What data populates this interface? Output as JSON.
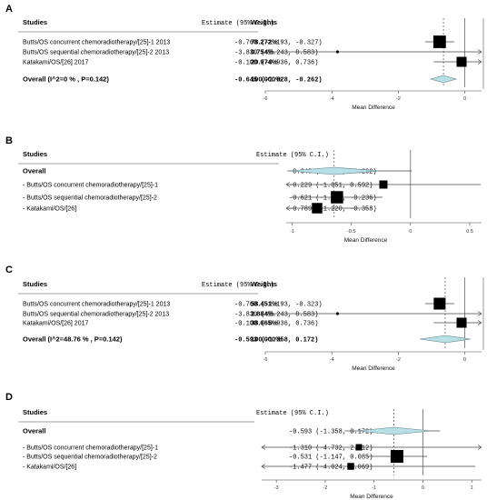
{
  "chart_data": [
    {
      "type": "forest",
      "panel_label": "A",
      "header": {
        "studies": "Studies",
        "estimate": "Estimate (95% C.I.)",
        "weights": "Weights"
      },
      "xlabel": "Mean Difference",
      "xlim": [
        -6,
        0.5
      ],
      "xticks": [
        -6,
        -4,
        -2,
        0
      ],
      "reference_line": -0.645,
      "rows": [
        {
          "label": "Butts/OS concurrent chemoradiotherapy/[25]-1 2013",
          "estimate_text": "-0.760 (-1.193, -0.327)",
          "weight": "78.272%",
          "est": -0.76,
          "lo": -1.193,
          "hi": -0.327,
          "marker": "square",
          "size": 0.78
        },
        {
          "label": "Butts/OS sequential chemoradiotherapy/[25]-2 2013",
          "estimate_text": "-3.830 (-8.243, 0.583)",
          "weight": "0.754%",
          "est": -3.83,
          "lo": -8.243,
          "hi": 0.583,
          "marker": "square",
          "size": 0.05
        },
        {
          "label": "Katakami/OS/[26] 2017",
          "estimate_text": "-0.100 (-0.936, 0.736)",
          "weight": "20.974%",
          "est": -0.1,
          "lo": -0.936,
          "hi": 0.736,
          "marker": "square",
          "size": 0.5
        }
      ],
      "overall": {
        "label": "Overall (I^2=0 % , P=0.142)",
        "estimate_text": "-0.645 (-1.028, -0.262)",
        "weight": "100.000%",
        "est": -0.645,
        "lo": -1.028,
        "hi": -0.262
      }
    },
    {
      "type": "forest",
      "panel_label": "B",
      "header": {
        "studies": "Studies",
        "estimate": "Estimate (95% C.I.)"
      },
      "xlabel": "Mean Difference",
      "xlim": [
        -1.05,
        0.6
      ],
      "xticks": [
        -1,
        -0.5,
        0,
        0.5
      ],
      "reference_line": -0.645,
      "overall": {
        "label": "Overall",
        "estimate_text": "-0.645 (-1.028, -0.262)",
        "est": -0.645,
        "lo": -1.028,
        "hi": -0.262
      },
      "rows": [
        {
          "label": "- Butts/OS concurrent chemoradiotherapy/[25]-1",
          "estimate_text": "-0.229 (-1.051, 0.592)",
          "est": -0.229,
          "lo": -1.051,
          "hi": 0.592,
          "marker": "square",
          "size": 0.3
        },
        {
          "label": "- Butts/OS sequential chemoradiotherapy/[25]-2",
          "estimate_text": "-0.621 (-1.005, -0.236)",
          "est": -0.621,
          "lo": -1.005,
          "hi": -0.236,
          "marker": "square",
          "size": 0.75
        },
        {
          "label": "- Katakami/OS/[26]",
          "estimate_text": "-0.789 (-1.220, -0.358)",
          "est": -0.789,
          "lo": -1.22,
          "hi": -0.358,
          "marker": "square",
          "size": 0.55
        }
      ]
    },
    {
      "type": "forest",
      "panel_label": "C",
      "header": {
        "studies": "Studies",
        "estimate": "Estimate (95% C.I.)",
        "weights": "Weights"
      },
      "xlabel": "Mean Difference",
      "xlim": [
        -6,
        0.5
      ],
      "xticks": [
        -6,
        -4,
        -2,
        0
      ],
      "reference_line": -0.593,
      "rows": [
        {
          "label": "Butts/OS concurrent chemoradiotherapy/[25]-1 2013",
          "estimate_text": "-0.760 (-1.193, -0.323)",
          "weight": "58.451%",
          "est": -0.76,
          "lo": -1.193,
          "hi": -0.323,
          "marker": "square",
          "size": 0.7
        },
        {
          "label": "Butts/OS sequential chemoradiotherapy/[25]-2 2013",
          "estimate_text": "-3.830 (-8.243, 0.583)",
          "weight": "2.884%",
          "est": -3.83,
          "lo": -8.243,
          "hi": 0.583,
          "marker": "square",
          "size": 0.05
        },
        {
          "label": "Katakami/OS/[26] 2017",
          "estimate_text": "-0.100 (-0.936, 0.736)",
          "weight": "38.665%",
          "est": -0.1,
          "lo": -0.936,
          "hi": 0.736,
          "marker": "square",
          "size": 0.5
        }
      ],
      "overall": {
        "label": "Overall (I^2=48.76 % , P=0.142)",
        "estimate_text": "-0.593 (-1.358, 0.172)",
        "weight": "100.000%",
        "est": -0.593,
        "lo": -1.358,
        "hi": 0.172
      }
    },
    {
      "type": "forest",
      "panel_label": "D",
      "header": {
        "studies": "Studies",
        "estimate": "Estimate (95% C.I.)"
      },
      "xlabel": "Mean Difference",
      "xlim": [
        -3.3,
        1.2
      ],
      "xticks": [
        -3,
        -2,
        -1,
        0,
        1
      ],
      "reference_line": -0.593,
      "overall": {
        "label": "Overall",
        "estimate_text": "-0.593 (-1.358, 0.172)",
        "est": -0.593,
        "lo": -1.358,
        "hi": 0.172
      },
      "rows": [
        {
          "label": "- Butts/OS concurrent chemoradiotherapy/[25]-1",
          "estimate_text": "-1.310 (-4.732, 2.112)",
          "est": -1.31,
          "lo": -4.732,
          "hi": 2.112,
          "marker": "square",
          "size": 0.1
        },
        {
          "label": "- Butts/OS sequential chemoradiotherapy/[25]-2",
          "estimate_text": "-0.531 (-1.147, 0.085)",
          "est": -0.531,
          "lo": -1.147,
          "hi": 0.085,
          "marker": "square",
          "size": 0.8
        },
        {
          "label": "- Katakami/OS/[26]",
          "estimate_text": "-1.477 (-4.024, 1.069)",
          "est": -1.477,
          "lo": -4.024,
          "hi": 1.069,
          "marker": "square",
          "size": 0.15
        }
      ]
    }
  ]
}
